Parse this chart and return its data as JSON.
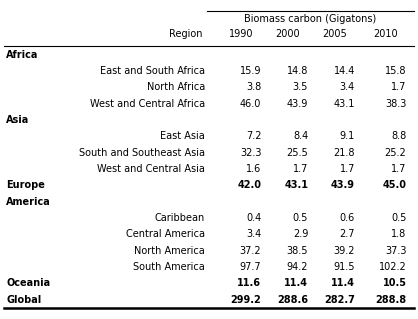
{
  "title": "Biomass carbon (Gigatons)",
  "rows": [
    {
      "label": "Africa",
      "bold": true,
      "indent": false,
      "values": [
        null,
        null,
        null,
        null
      ]
    },
    {
      "label": "East and South Africa",
      "bold": false,
      "indent": true,
      "values": [
        "15.9",
        "14.8",
        "14.4",
        "15.8"
      ]
    },
    {
      "label": "North Africa",
      "bold": false,
      "indent": true,
      "values": [
        "3.8",
        "3.5",
        "3.4",
        "1.7"
      ]
    },
    {
      "label": "West and Central Africa",
      "bold": false,
      "indent": true,
      "values": [
        "46.0",
        "43.9",
        "43.1",
        "38.3"
      ]
    },
    {
      "label": "Asia",
      "bold": true,
      "indent": false,
      "values": [
        null,
        null,
        null,
        null
      ]
    },
    {
      "label": "East Asia",
      "bold": false,
      "indent": true,
      "values": [
        "7.2",
        "8.4",
        "9.1",
        "8.8"
      ]
    },
    {
      "label": "South and Southeast Asia",
      "bold": false,
      "indent": true,
      "values": [
        "32.3",
        "25.5",
        "21.8",
        "25.2"
      ]
    },
    {
      "label": "West and Central Asia",
      "bold": false,
      "indent": true,
      "values": [
        "1.6",
        "1.7",
        "1.7",
        "1.7"
      ]
    },
    {
      "label": "Europe",
      "bold": true,
      "indent": false,
      "values": [
        "42.0",
        "43.1",
        "43.9",
        "45.0"
      ]
    },
    {
      "label": "America",
      "bold": true,
      "indent": false,
      "values": [
        null,
        null,
        null,
        null
      ]
    },
    {
      "label": "Caribbean",
      "bold": false,
      "indent": true,
      "values": [
        "0.4",
        "0.5",
        "0.6",
        "0.5"
      ]
    },
    {
      "label": "Central America",
      "bold": false,
      "indent": true,
      "values": [
        "3.4",
        "2.9",
        "2.7",
        "1.8"
      ]
    },
    {
      "label": "North America",
      "bold": false,
      "indent": true,
      "values": [
        "37.2",
        "38.5",
        "39.2",
        "37.3"
      ]
    },
    {
      "label": "South America",
      "bold": false,
      "indent": true,
      "values": [
        "97.7",
        "94.2",
        "91.5",
        "102.2"
      ]
    },
    {
      "label": "Oceania",
      "bold": true,
      "indent": false,
      "values": [
        "11.6",
        "11.4",
        "11.4",
        "10.5"
      ]
    },
    {
      "label": "Global",
      "bold": true,
      "indent": false,
      "values": [
        "299.2",
        "288.6",
        "282.7",
        "288.8"
      ]
    }
  ],
  "years": [
    "1990",
    "2000",
    "2005",
    "2010"
  ],
  "font_size": 7.0,
  "bg_color": "#ffffff"
}
